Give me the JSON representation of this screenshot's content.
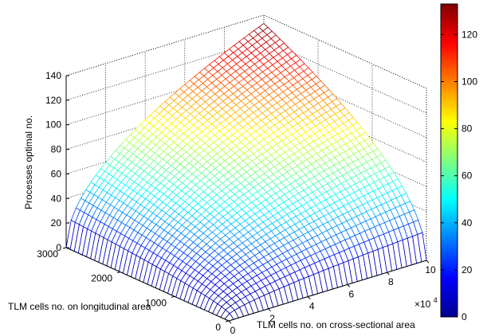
{
  "chart_data": {
    "type": "surface3d",
    "xlabel": "TLM cells no. on cross-sectional area",
    "ylabel": "TLM cells no. on longitudinal area",
    "zlabel": "Processes optimal no.",
    "x_exponent_label": "×10",
    "x_exponent_power": "4",
    "x_ticks": [
      "0",
      "2",
      "4",
      "6",
      "8",
      "10"
    ],
    "y_ticks": [
      "0",
      "1000",
      "2000",
      "3000"
    ],
    "z_ticks": [
      "0",
      "20",
      "40",
      "60",
      "80",
      "100",
      "120",
      "140"
    ],
    "colorbar_ticks": [
      "0",
      "20",
      "40",
      "60",
      "80",
      "100",
      "120"
    ],
    "xlim": [
      0,
      100000
    ],
    "ylim": [
      0,
      3000
    ],
    "zlim": [
      0,
      140
    ],
    "clim": [
      0,
      133
    ],
    "colormap": "jet",
    "grid": true,
    "surface": {
      "formula": "z = sqrt(x * y / 16900)",
      "x_range": [
        0,
        100000
      ],
      "y_range": [
        0,
        3000
      ],
      "z_max": 133,
      "mesh_edges_colored": true,
      "face_fill": "white"
    }
  }
}
